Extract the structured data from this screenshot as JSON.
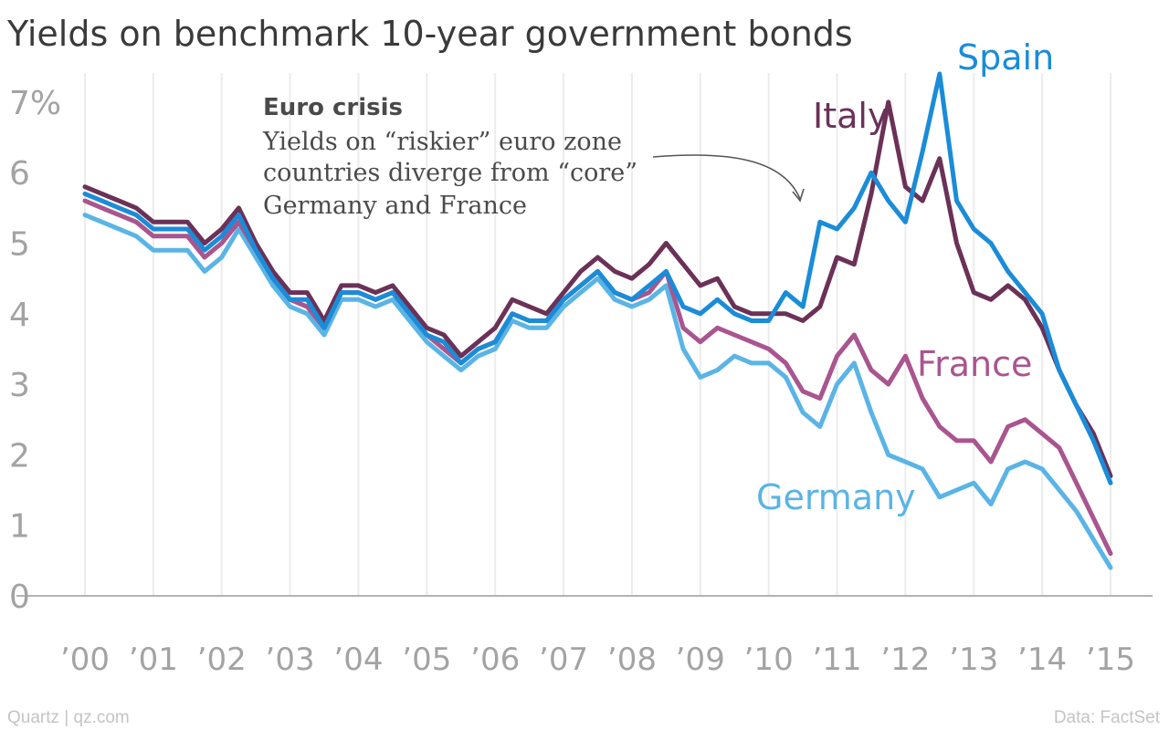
{
  "chart_data": {
    "type": "line",
    "title": "Yields on benchmark 10-year government bonds",
    "y_ticks": [
      "0",
      "1",
      "2",
      "3",
      "4",
      "5",
      "6",
      "7%"
    ],
    "y_tick_values": [
      0,
      1,
      2,
      3,
      4,
      5,
      6,
      7
    ],
    "x_ticks": [
      "’00",
      "’01",
      "’02",
      "’03",
      "’04",
      "’05",
      "’06",
      "’07",
      "’08",
      "’09",
      "’10",
      "’11",
      "’12",
      "’13",
      "’14",
      "’15"
    ],
    "x_tick_values": [
      2000,
      2001,
      2002,
      2003,
      2004,
      2005,
      2006,
      2007,
      2008,
      2009,
      2010,
      2011,
      2012,
      2013,
      2014,
      2015
    ],
    "xlim": [
      2000,
      2015
    ],
    "ylim": [
      0,
      7.5
    ],
    "grid": "vertical",
    "series": [
      {
        "name": "Germany",
        "color": "#5ab4e5",
        "x": [
          2000.0,
          2000.25,
          2000.5,
          2000.75,
          2001.0,
          2001.25,
          2001.5,
          2001.75,
          2002.0,
          2002.25,
          2002.5,
          2002.75,
          2003.0,
          2003.25,
          2003.5,
          2003.75,
          2004.0,
          2004.25,
          2004.5,
          2004.75,
          2005.0,
          2005.25,
          2005.5,
          2005.75,
          2006.0,
          2006.25,
          2006.5,
          2006.75,
          2007.0,
          2007.25,
          2007.5,
          2007.75,
          2008.0,
          2008.25,
          2008.5,
          2008.75,
          2009.0,
          2009.25,
          2009.5,
          2009.75,
          2010.0,
          2010.25,
          2010.5,
          2010.75,
          2011.0,
          2011.25,
          2011.5,
          2011.75,
          2012.0,
          2012.25,
          2012.5,
          2012.75,
          2013.0,
          2013.25,
          2013.5,
          2013.75,
          2014.0,
          2014.25,
          2014.5,
          2014.75,
          2015.0
        ],
        "values": [
          5.4,
          5.3,
          5.2,
          5.1,
          4.9,
          4.9,
          4.9,
          4.6,
          4.8,
          5.2,
          4.8,
          4.4,
          4.1,
          4.0,
          3.7,
          4.2,
          4.2,
          4.1,
          4.2,
          3.9,
          3.6,
          3.4,
          3.2,
          3.4,
          3.5,
          3.9,
          3.8,
          3.8,
          4.1,
          4.3,
          4.5,
          4.2,
          4.1,
          4.2,
          4.4,
          3.5,
          3.1,
          3.2,
          3.4,
          3.3,
          3.3,
          3.1,
          2.6,
          2.4,
          3.0,
          3.3,
          2.6,
          2.0,
          1.9,
          1.8,
          1.4,
          1.5,
          1.6,
          1.3,
          1.8,
          1.9,
          1.8,
          1.5,
          1.2,
          0.8,
          0.4
        ]
      },
      {
        "name": "France",
        "color": "#a9558f",
        "x": [
          2000.0,
          2000.25,
          2000.5,
          2000.75,
          2001.0,
          2001.25,
          2001.5,
          2001.75,
          2002.0,
          2002.25,
          2002.5,
          2002.75,
          2003.0,
          2003.25,
          2003.5,
          2003.75,
          2004.0,
          2004.25,
          2004.5,
          2004.75,
          2005.0,
          2005.25,
          2005.5,
          2005.75,
          2006.0,
          2006.25,
          2006.5,
          2006.75,
          2007.0,
          2007.25,
          2007.5,
          2007.75,
          2008.0,
          2008.25,
          2008.5,
          2008.75,
          2009.0,
          2009.25,
          2009.5,
          2009.75,
          2010.0,
          2010.25,
          2010.5,
          2010.75,
          2011.0,
          2011.25,
          2011.5,
          2011.75,
          2012.0,
          2012.25,
          2012.5,
          2012.75,
          2013.0,
          2013.25,
          2013.5,
          2013.75,
          2014.0,
          2014.25,
          2014.5,
          2014.75,
          2015.0
        ],
        "values": [
          5.6,
          5.5,
          5.4,
          5.3,
          5.1,
          5.1,
          5.1,
          4.8,
          5.0,
          5.3,
          4.9,
          4.5,
          4.2,
          4.1,
          3.8,
          4.3,
          4.3,
          4.2,
          4.3,
          4.0,
          3.7,
          3.5,
          3.3,
          3.5,
          3.6,
          4.0,
          3.9,
          3.9,
          4.2,
          4.4,
          4.6,
          4.3,
          4.2,
          4.3,
          4.6,
          3.8,
          3.6,
          3.8,
          3.7,
          3.6,
          3.5,
          3.3,
          2.9,
          2.8,
          3.4,
          3.7,
          3.2,
          3.0,
          3.4,
          2.8,
          2.4,
          2.2,
          2.2,
          1.9,
          2.4,
          2.5,
          2.3,
          2.1,
          1.6,
          1.1,
          0.6
        ]
      },
      {
        "name": "Italy",
        "color": "#6b3157",
        "x": [
          2000.0,
          2000.25,
          2000.5,
          2000.75,
          2001.0,
          2001.25,
          2001.5,
          2001.75,
          2002.0,
          2002.25,
          2002.5,
          2002.75,
          2003.0,
          2003.25,
          2003.5,
          2003.75,
          2004.0,
          2004.25,
          2004.5,
          2004.75,
          2005.0,
          2005.25,
          2005.5,
          2005.75,
          2006.0,
          2006.25,
          2006.5,
          2006.75,
          2007.0,
          2007.25,
          2007.5,
          2007.75,
          2008.0,
          2008.25,
          2008.5,
          2008.75,
          2009.0,
          2009.25,
          2009.5,
          2009.75,
          2010.0,
          2010.25,
          2010.5,
          2010.75,
          2011.0,
          2011.25,
          2011.5,
          2011.75,
          2012.0,
          2012.25,
          2012.5,
          2012.75,
          2013.0,
          2013.25,
          2013.5,
          2013.75,
          2014.0,
          2014.25,
          2014.5,
          2014.75,
          2015.0
        ],
        "values": [
          5.8,
          5.7,
          5.6,
          5.5,
          5.3,
          5.3,
          5.3,
          5.0,
          5.2,
          5.5,
          5.0,
          4.6,
          4.3,
          4.3,
          3.9,
          4.4,
          4.4,
          4.3,
          4.4,
          4.1,
          3.8,
          3.7,
          3.4,
          3.6,
          3.8,
          4.2,
          4.1,
          4.0,
          4.3,
          4.6,
          4.8,
          4.6,
          4.5,
          4.7,
          5.0,
          4.7,
          4.4,
          4.5,
          4.1,
          4.0,
          4.0,
          4.0,
          3.9,
          4.1,
          4.8,
          4.7,
          5.7,
          7.0,
          5.8,
          5.6,
          6.2,
          5.0,
          4.3,
          4.2,
          4.4,
          4.2,
          3.8,
          3.2,
          2.7,
          2.3,
          1.7
        ]
      },
      {
        "name": "Spain",
        "color": "#1a8cd8",
        "x": [
          2000.0,
          2000.25,
          2000.5,
          2000.75,
          2001.0,
          2001.25,
          2001.5,
          2001.75,
          2002.0,
          2002.25,
          2002.5,
          2002.75,
          2003.0,
          2003.25,
          2003.5,
          2003.75,
          2004.0,
          2004.25,
          2004.5,
          2004.75,
          2005.0,
          2005.25,
          2005.5,
          2005.75,
          2006.0,
          2006.25,
          2006.5,
          2006.75,
          2007.0,
          2007.25,
          2007.5,
          2007.75,
          2008.0,
          2008.25,
          2008.5,
          2008.75,
          2009.0,
          2009.25,
          2009.5,
          2009.75,
          2010.0,
          2010.25,
          2010.5,
          2010.75,
          2011.0,
          2011.25,
          2011.5,
          2011.75,
          2012.0,
          2012.25,
          2012.5,
          2012.75,
          2013.0,
          2013.25,
          2013.5,
          2013.75,
          2014.0,
          2014.25,
          2014.5,
          2014.75,
          2015.0
        ],
        "values": [
          5.7,
          5.6,
          5.5,
          5.4,
          5.2,
          5.2,
          5.2,
          4.9,
          5.1,
          5.4,
          4.9,
          4.5,
          4.2,
          4.2,
          3.8,
          4.3,
          4.3,
          4.2,
          4.3,
          4.0,
          3.7,
          3.6,
          3.3,
          3.5,
          3.6,
          4.0,
          3.9,
          3.9,
          4.2,
          4.4,
          4.6,
          4.3,
          4.2,
          4.4,
          4.6,
          4.1,
          4.0,
          4.2,
          4.0,
          3.9,
          3.9,
          4.3,
          4.1,
          5.3,
          5.2,
          5.5,
          6.0,
          5.6,
          5.3,
          6.3,
          7.4,
          5.6,
          5.2,
          5.0,
          4.6,
          4.3,
          4.0,
          3.2,
          2.7,
          2.2,
          1.6
        ]
      }
    ]
  },
  "labels": {
    "spain": "Spain",
    "italy": "Italy",
    "france": "France",
    "germany": "Germany"
  },
  "annotation": {
    "heading": "Euro crisis",
    "lines": [
      "Yields on “riskier” euro zone",
      "countries diverge from “core”",
      "Germany and France"
    ]
  },
  "footer": {
    "source_left": "Quartz | qz.com",
    "source_right": "Data: FactSet"
  }
}
